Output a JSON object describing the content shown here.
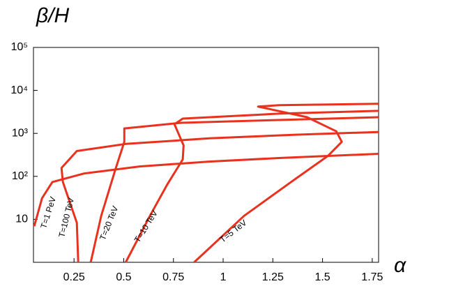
{
  "chart_data": {
    "type": "line",
    "ylabel": "β/H",
    "xlabel": "α",
    "log_y": true,
    "grid": false,
    "xlim": [
      0.046,
      1.782
    ],
    "ylim": [
      1,
      100000
    ],
    "xticks": [
      0.25,
      0.5,
      0.75,
      1,
      1.25,
      1.5,
      1.75
    ],
    "yticks": [
      {
        "value": 10,
        "label": "10"
      },
      {
        "value": 100,
        "label": "10²"
      },
      {
        "value": 1000,
        "label": "10³"
      },
      {
        "value": 10000,
        "label": "10⁴"
      },
      {
        "value": 100000,
        "label": "10⁵"
      }
    ],
    "series": [
      {
        "name": "T=1 PeV",
        "color": "#e8321e",
        "x": [
          0.05,
          0.089,
          0.141,
          0.299,
          0.58,
          0.931,
          1.282,
          1.782
        ],
        "values": [
          6.9,
          31,
          74,
          116,
          170,
          221,
          267,
          335
        ]
      },
      {
        "name": "T=100 TeV",
        "color": "#e8321e",
        "x": [
          0.271,
          0.264,
          0.194,
          0.187,
          0.264,
          0.51,
          0.931,
          1.352,
          1.782
        ],
        "values": [
          1,
          8.3,
          74,
          157,
          389,
          568,
          768,
          927,
          1079
        ]
      },
      {
        "name": "T=20 TeV",
        "color": "#e8321e",
        "x": [
          0.334,
          0.387,
          0.457,
          0.503,
          0.503,
          0.79,
          1.282,
          1.782
        ],
        "values": [
          1,
          12.1,
          140,
          636,
          1303,
          1762,
          2049,
          2384
        ]
      },
      {
        "name": "T=10 TeV",
        "color": "#e8321e",
        "x": [
          0.51,
          0.632,
          0.72,
          0.797,
          0.801,
          0.755,
          0.797,
          1.282,
          1.782
        ],
        "values": [
          1,
          12.1,
          66,
          247,
          526,
          1633,
          2208,
          2877,
          3349
        ]
      },
      {
        "name": "T=5 TeV",
        "color": "#e8321e",
        "x": [
          0.854,
          1.106,
          1.352,
          1.527,
          1.597,
          1.569,
          1.422,
          1.176,
          1.282,
          1.782
        ],
        "values": [
          1,
          12.1,
          80,
          299,
          636,
          1120,
          2384,
          4198,
          4528,
          4886
        ]
      }
    ]
  }
}
